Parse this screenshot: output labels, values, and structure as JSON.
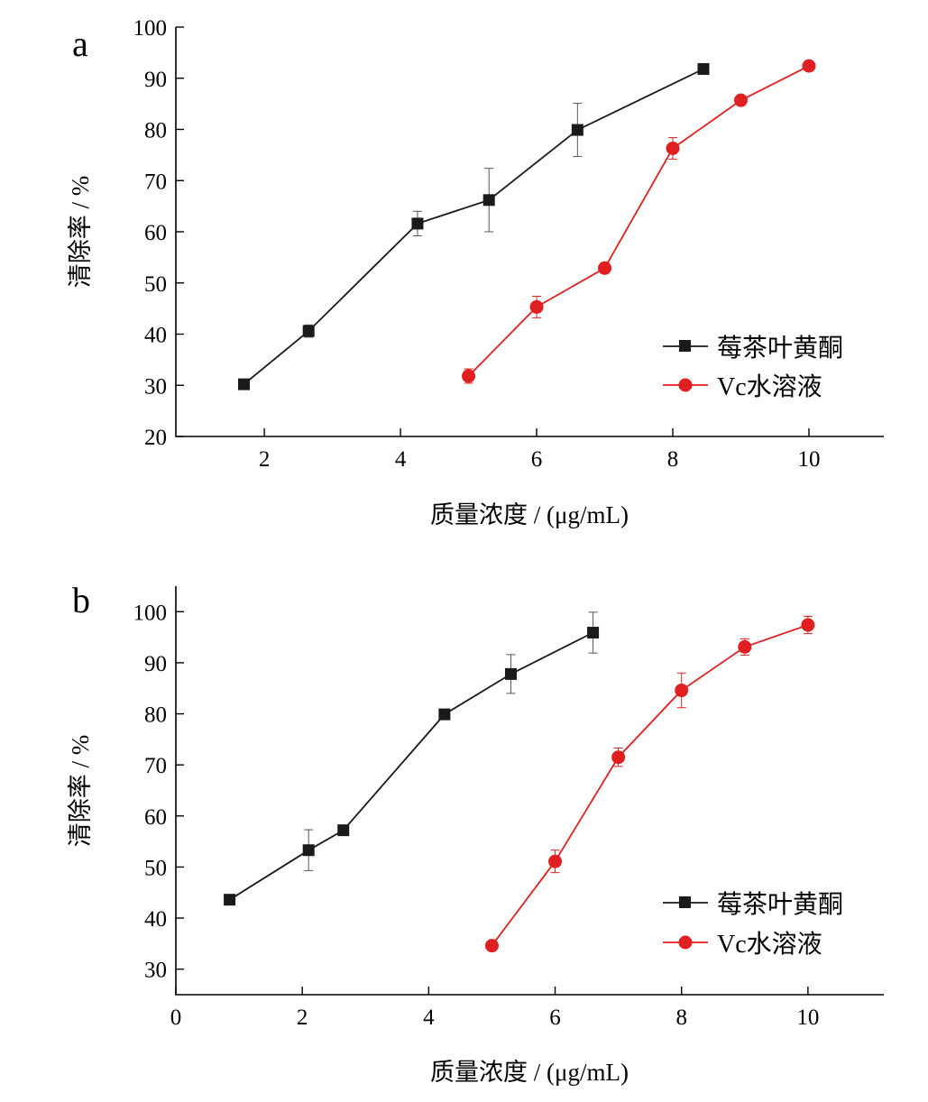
{
  "chart_data": [
    {
      "panel": "a",
      "type": "line",
      "xlabel": "质量浓度 / (μg/mL)",
      "ylabel": "清除率 / %",
      "xlim": [
        0.7,
        11.1
      ],
      "ylim": [
        20,
        100
      ],
      "xticks": [
        2,
        4,
        6,
        8,
        10
      ],
      "yticks": [
        20,
        30,
        40,
        50,
        60,
        70,
        80,
        90,
        100
      ],
      "grid": false,
      "legend_position": "right-center",
      "series": [
        {
          "name": "莓茶叶黄酮",
          "color": "#1a1a1a",
          "marker": "square",
          "x": [
            1.7,
            2.65,
            4.25,
            5.3,
            6.6,
            8.45
          ],
          "y": [
            30.2,
            40.6,
            61.6,
            66.2,
            79.9,
            91.8
          ],
          "err": [
            0,
            1.2,
            2.4,
            6.2,
            5.2,
            0
          ]
        },
        {
          "name": "Vc水溶液",
          "color": "#e02020",
          "marker": "circle",
          "x": [
            5,
            6,
            7,
            8,
            9,
            10
          ],
          "y": [
            31.8,
            45.3,
            52.9,
            76.3,
            85.7,
            92.4
          ],
          "err": [
            1.4,
            2.1,
            1.0,
            2.1,
            0,
            0
          ]
        }
      ]
    },
    {
      "panel": "b",
      "type": "line",
      "xlabel": "质量浓度 / (μg/mL)",
      "ylabel": "清除率 / %",
      "xlim": [
        0,
        11.2
      ],
      "ylim": [
        25,
        105
      ],
      "xticks": [
        0,
        2,
        4,
        6,
        8,
        10
      ],
      "yticks": [
        30,
        40,
        50,
        60,
        70,
        80,
        90,
        100
      ],
      "grid": false,
      "legend_position": "right-center",
      "series": [
        {
          "name": "莓茶叶黄酮",
          "color": "#1a1a1a",
          "marker": "square",
          "x": [
            0.85,
            2.1,
            2.65,
            4.25,
            5.3,
            6.6
          ],
          "y": [
            43.6,
            53.3,
            57.2,
            79.9,
            87.8,
            95.9
          ],
          "err": [
            0,
            4.0,
            1.0,
            0,
            3.8,
            4.0
          ]
        },
        {
          "name": "Vc水溶液",
          "color": "#e02020",
          "marker": "circle",
          "x": [
            5,
            6,
            7,
            8,
            9,
            10
          ],
          "y": [
            34.6,
            51.1,
            71.5,
            84.6,
            93.1,
            97.4
          ],
          "err": [
            0,
            2.2,
            1.8,
            3.4,
            1.6,
            1.7
          ]
        }
      ]
    }
  ]
}
